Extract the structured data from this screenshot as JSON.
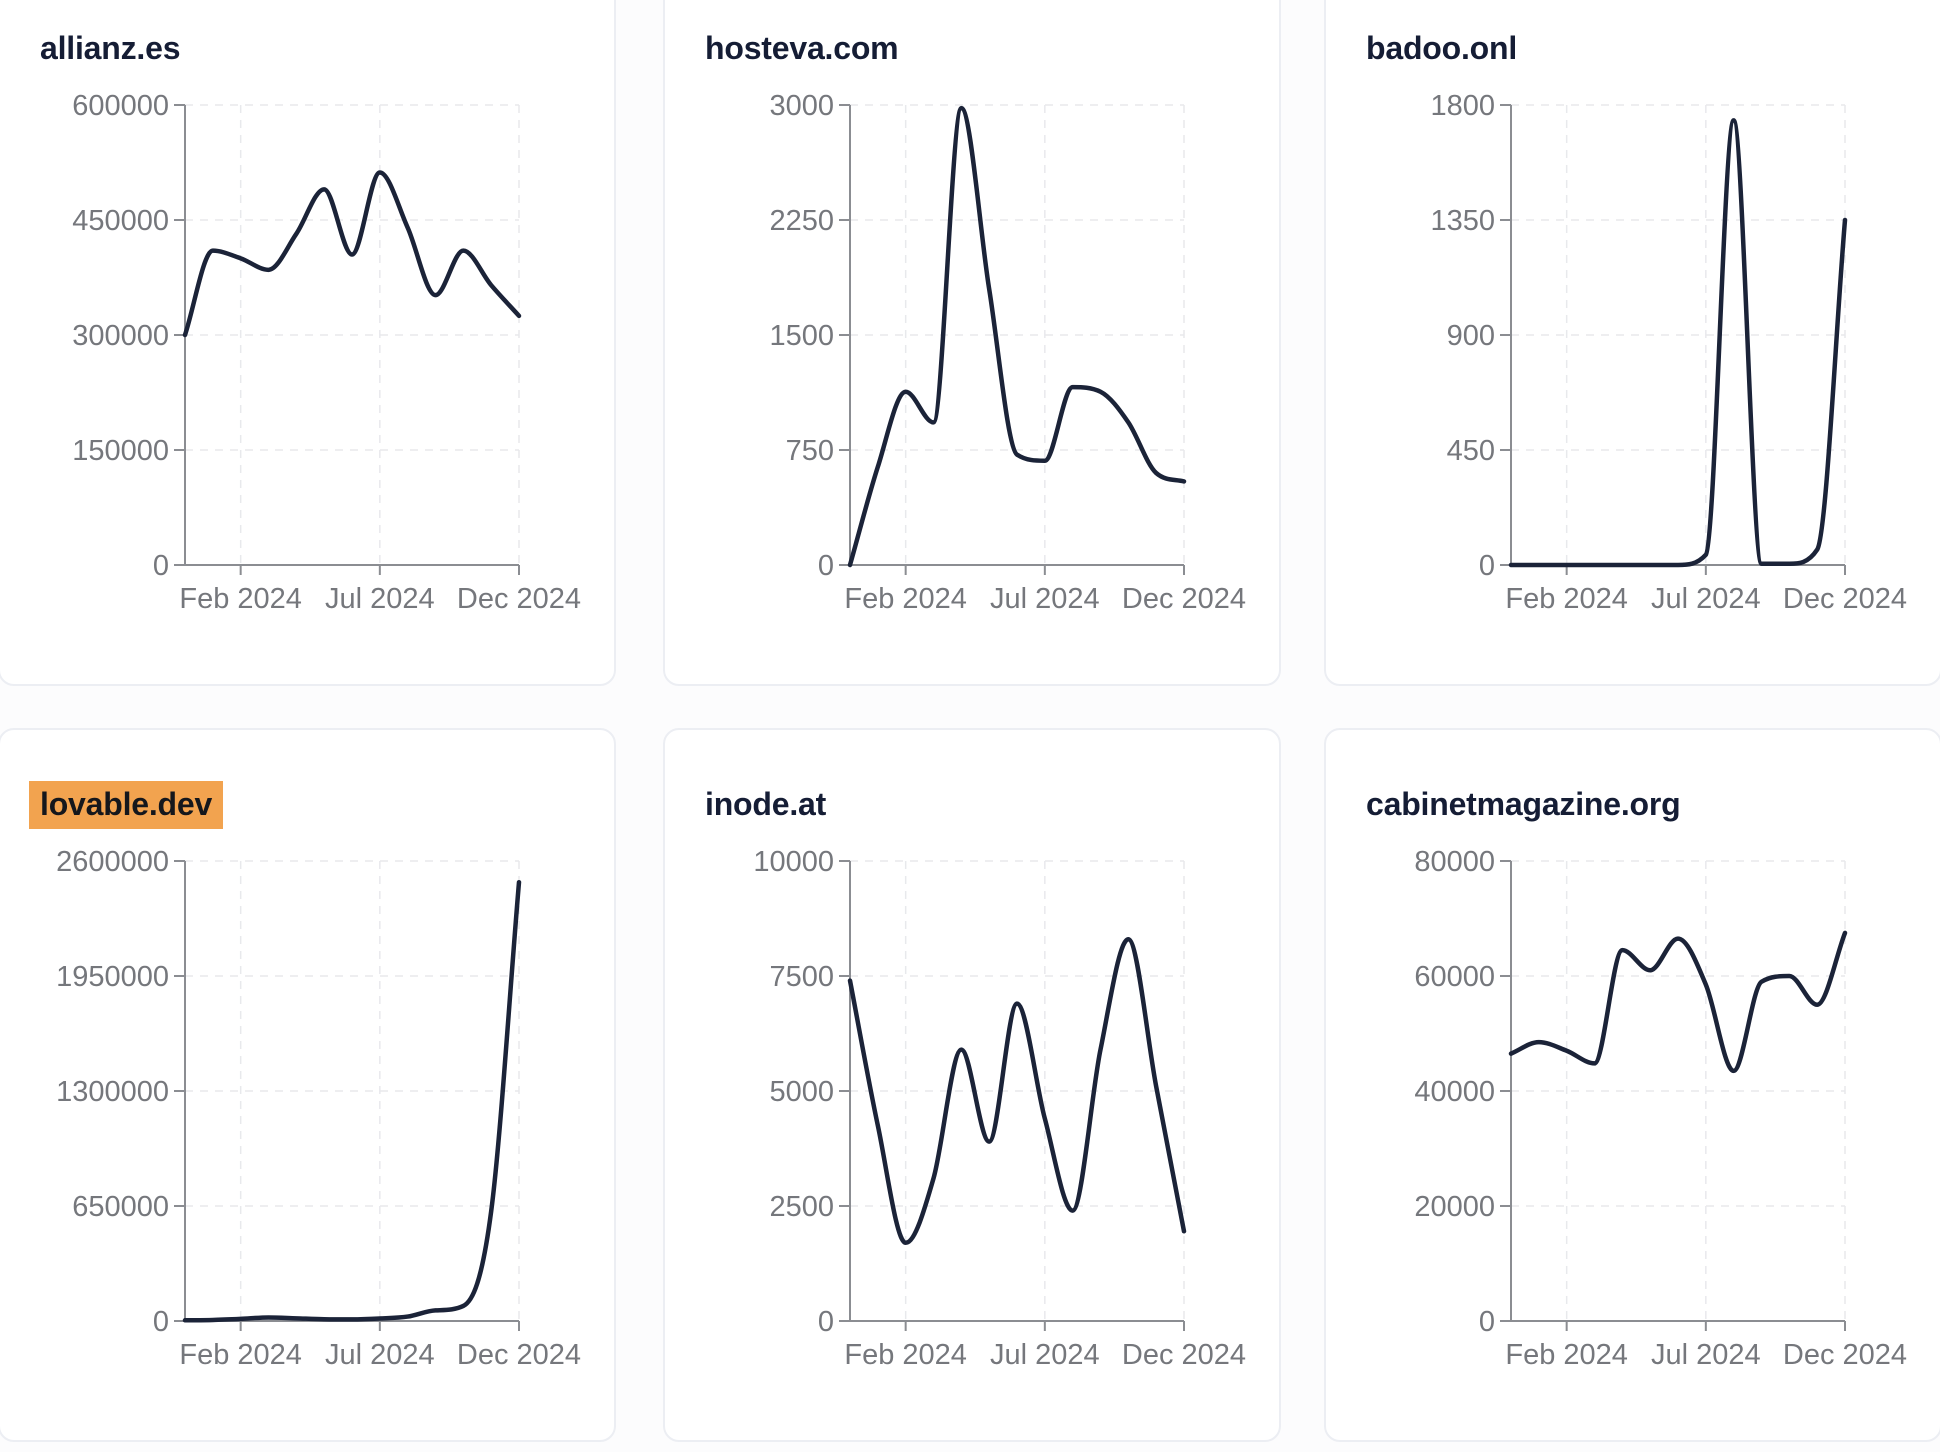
{
  "colors": {
    "page_bg": "#fcfcfd",
    "card_bg": "#ffffff",
    "card_border": "#eceef3",
    "title": "#151d35",
    "line": "#1b2338",
    "axis": "#8b8d92",
    "tick_text": "#75777c",
    "grid": "#e8e9ec",
    "title_highlight": "#f2a34f",
    "title_highlight_text": "#15171c"
  },
  "chart_data": [
    {
      "type": "line",
      "title": "allianz.es",
      "title_highlighted": false,
      "x": [
        "Dec 2023",
        "Jan 2024",
        "Feb 2024",
        "Mar 2024",
        "Apr 2024",
        "May 2024",
        "Jun 2024",
        "Jul 2024",
        "Aug 2024",
        "Sep 2024",
        "Oct 2024",
        "Nov 2024",
        "Dec 2024"
      ],
      "values": [
        300000,
        410000,
        400000,
        385000,
        432000,
        490000,
        405000,
        512000,
        440000,
        352000,
        410000,
        365000,
        325000
      ],
      "ylim": [
        0,
        600000
      ],
      "y_tick_values": [
        0,
        150000,
        300000,
        450000,
        600000
      ],
      "x_tick_labels": [
        "Feb 2024",
        "Jul 2024",
        "Dec 2024"
      ],
      "grid": true,
      "legend": false
    },
    {
      "type": "line",
      "title": "hosteva.com",
      "title_highlighted": false,
      "x": [
        "Dec 2023",
        "Jan 2024",
        "Feb 2024",
        "Mar 2024",
        "Apr 2024",
        "May 2024",
        "Jun 2024",
        "Jul 2024",
        "Aug 2024",
        "Sep 2024",
        "Oct 2024",
        "Nov 2024",
        "Dec 2024"
      ],
      "values": [
        0,
        640,
        1130,
        930,
        2980,
        1800,
        720,
        680,
        1160,
        1130,
        930,
        600,
        545
      ],
      "ylim": [
        0,
        3000
      ],
      "y_tick_values": [
        0,
        750,
        1500,
        2250,
        3000
      ],
      "x_tick_labels": [
        "Feb 2024",
        "Jul 2024",
        "Dec 2024"
      ],
      "grid": true,
      "legend": false
    },
    {
      "type": "line",
      "title": "badoo.onl",
      "title_highlighted": false,
      "x": [
        "Dec 2023",
        "Jan 2024",
        "Feb 2024",
        "Mar 2024",
        "Apr 2024",
        "May 2024",
        "Jun 2024",
        "Jul 2024",
        "Aug 2024",
        "Sep 2024",
        "Oct 2024",
        "Nov 2024",
        "Dec 2024"
      ],
      "values": [
        0,
        0,
        0,
        0,
        0,
        0,
        0,
        40,
        1740,
        5,
        5,
        60,
        1350
      ],
      "ylim": [
        0,
        1800
      ],
      "y_tick_values": [
        0,
        450,
        900,
        1350,
        1800
      ],
      "x_tick_labels": [
        "Feb 2024",
        "Jul 2024",
        "Dec 2024"
      ],
      "grid": true,
      "legend": false
    },
    {
      "type": "line",
      "title": "lovable.dev",
      "title_highlighted": true,
      "x": [
        "Dec 2023",
        "Jan 2024",
        "Feb 2024",
        "Mar 2024",
        "Apr 2024",
        "May 2024",
        "Jun 2024",
        "Jul 2024",
        "Aug 2024",
        "Sep 2024",
        "Oct 2024",
        "Nov 2024",
        "Dec 2024"
      ],
      "values": [
        4000,
        6000,
        12000,
        20000,
        15000,
        10000,
        9000,
        14000,
        25000,
        60000,
        85000,
        620000,
        2480000
      ],
      "ylim": [
        0,
        2600000
      ],
      "y_tick_values": [
        0,
        650000,
        1300000,
        1950000,
        2600000
      ],
      "x_tick_labels": [
        "Feb 2024",
        "Jul 2024",
        "Dec 2024"
      ],
      "grid": true,
      "legend": false
    },
    {
      "type": "line",
      "title": "inode.at",
      "title_highlighted": false,
      "x": [
        "Dec 2023",
        "Jan 2024",
        "Feb 2024",
        "Mar 2024",
        "Apr 2024",
        "May 2024",
        "Jun 2024",
        "Jul 2024",
        "Aug 2024",
        "Sep 2024",
        "Oct 2024",
        "Nov 2024",
        "Dec 2024"
      ],
      "values": [
        7400,
        4250,
        1700,
        3100,
        5900,
        3900,
        6900,
        4400,
        2400,
        5900,
        8300,
        5100,
        1950
      ],
      "ylim": [
        0,
        10000
      ],
      "y_tick_values": [
        0,
        2500,
        5000,
        7500,
        10000
      ],
      "x_tick_labels": [
        "Feb 2024",
        "Jul 2024",
        "Dec 2024"
      ],
      "grid": true,
      "legend": false
    },
    {
      "type": "line",
      "title": "cabinetmagazine.org",
      "title_highlighted": false,
      "x": [
        "Dec 2023",
        "Jan 2024",
        "Feb 2024",
        "Mar 2024",
        "Apr 2024",
        "May 2024",
        "Jun 2024",
        "Jul 2024",
        "Aug 2024",
        "Sep 2024",
        "Oct 2024",
        "Nov 2024",
        "Dec 2024"
      ],
      "values": [
        46500,
        48500,
        47000,
        44800,
        64500,
        61000,
        66500,
        58500,
        43500,
        59000,
        60000,
        55000,
        67500
      ],
      "ylim": [
        0,
        80000
      ],
      "y_tick_values": [
        0,
        20000,
        40000,
        60000,
        80000
      ],
      "x_tick_labels": [
        "Feb 2024",
        "Jul 2024",
        "Dec 2024"
      ],
      "grid": true,
      "legend": false
    }
  ]
}
